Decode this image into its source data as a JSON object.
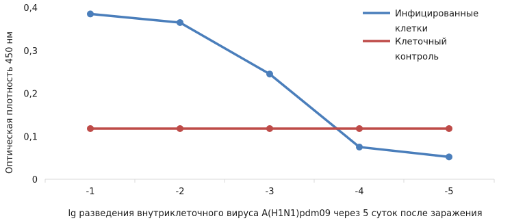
{
  "chart_data": {
    "type": "line",
    "categories": [
      "-1",
      "-2",
      "-3",
      "-4",
      "-5"
    ],
    "ylim": [
      0,
      0.4
    ],
    "yticks": [
      "0",
      "0,1",
      "0,2",
      "0,3",
      "0,4"
    ],
    "xlabel": "lg разведения внутриклеточного вируса A(H1N1)pdm09 через 5 суток после заражения",
    "ylabel": "Оптическая плотность 450 нм",
    "legend_position": "top-right",
    "grid": false,
    "series": [
      {
        "name_lines": [
          "Инфицированные",
          "клетки"
        ],
        "color": "#4a7ebb",
        "values": [
          0.385,
          0.365,
          0.245,
          0.075,
          0.052
        ]
      },
      {
        "name_lines": [
          "Клеточный",
          "контроль"
        ],
        "color": "#be4b48",
        "values": [
          0.118,
          0.118,
          0.118,
          0.118,
          0.118
        ]
      }
    ]
  }
}
